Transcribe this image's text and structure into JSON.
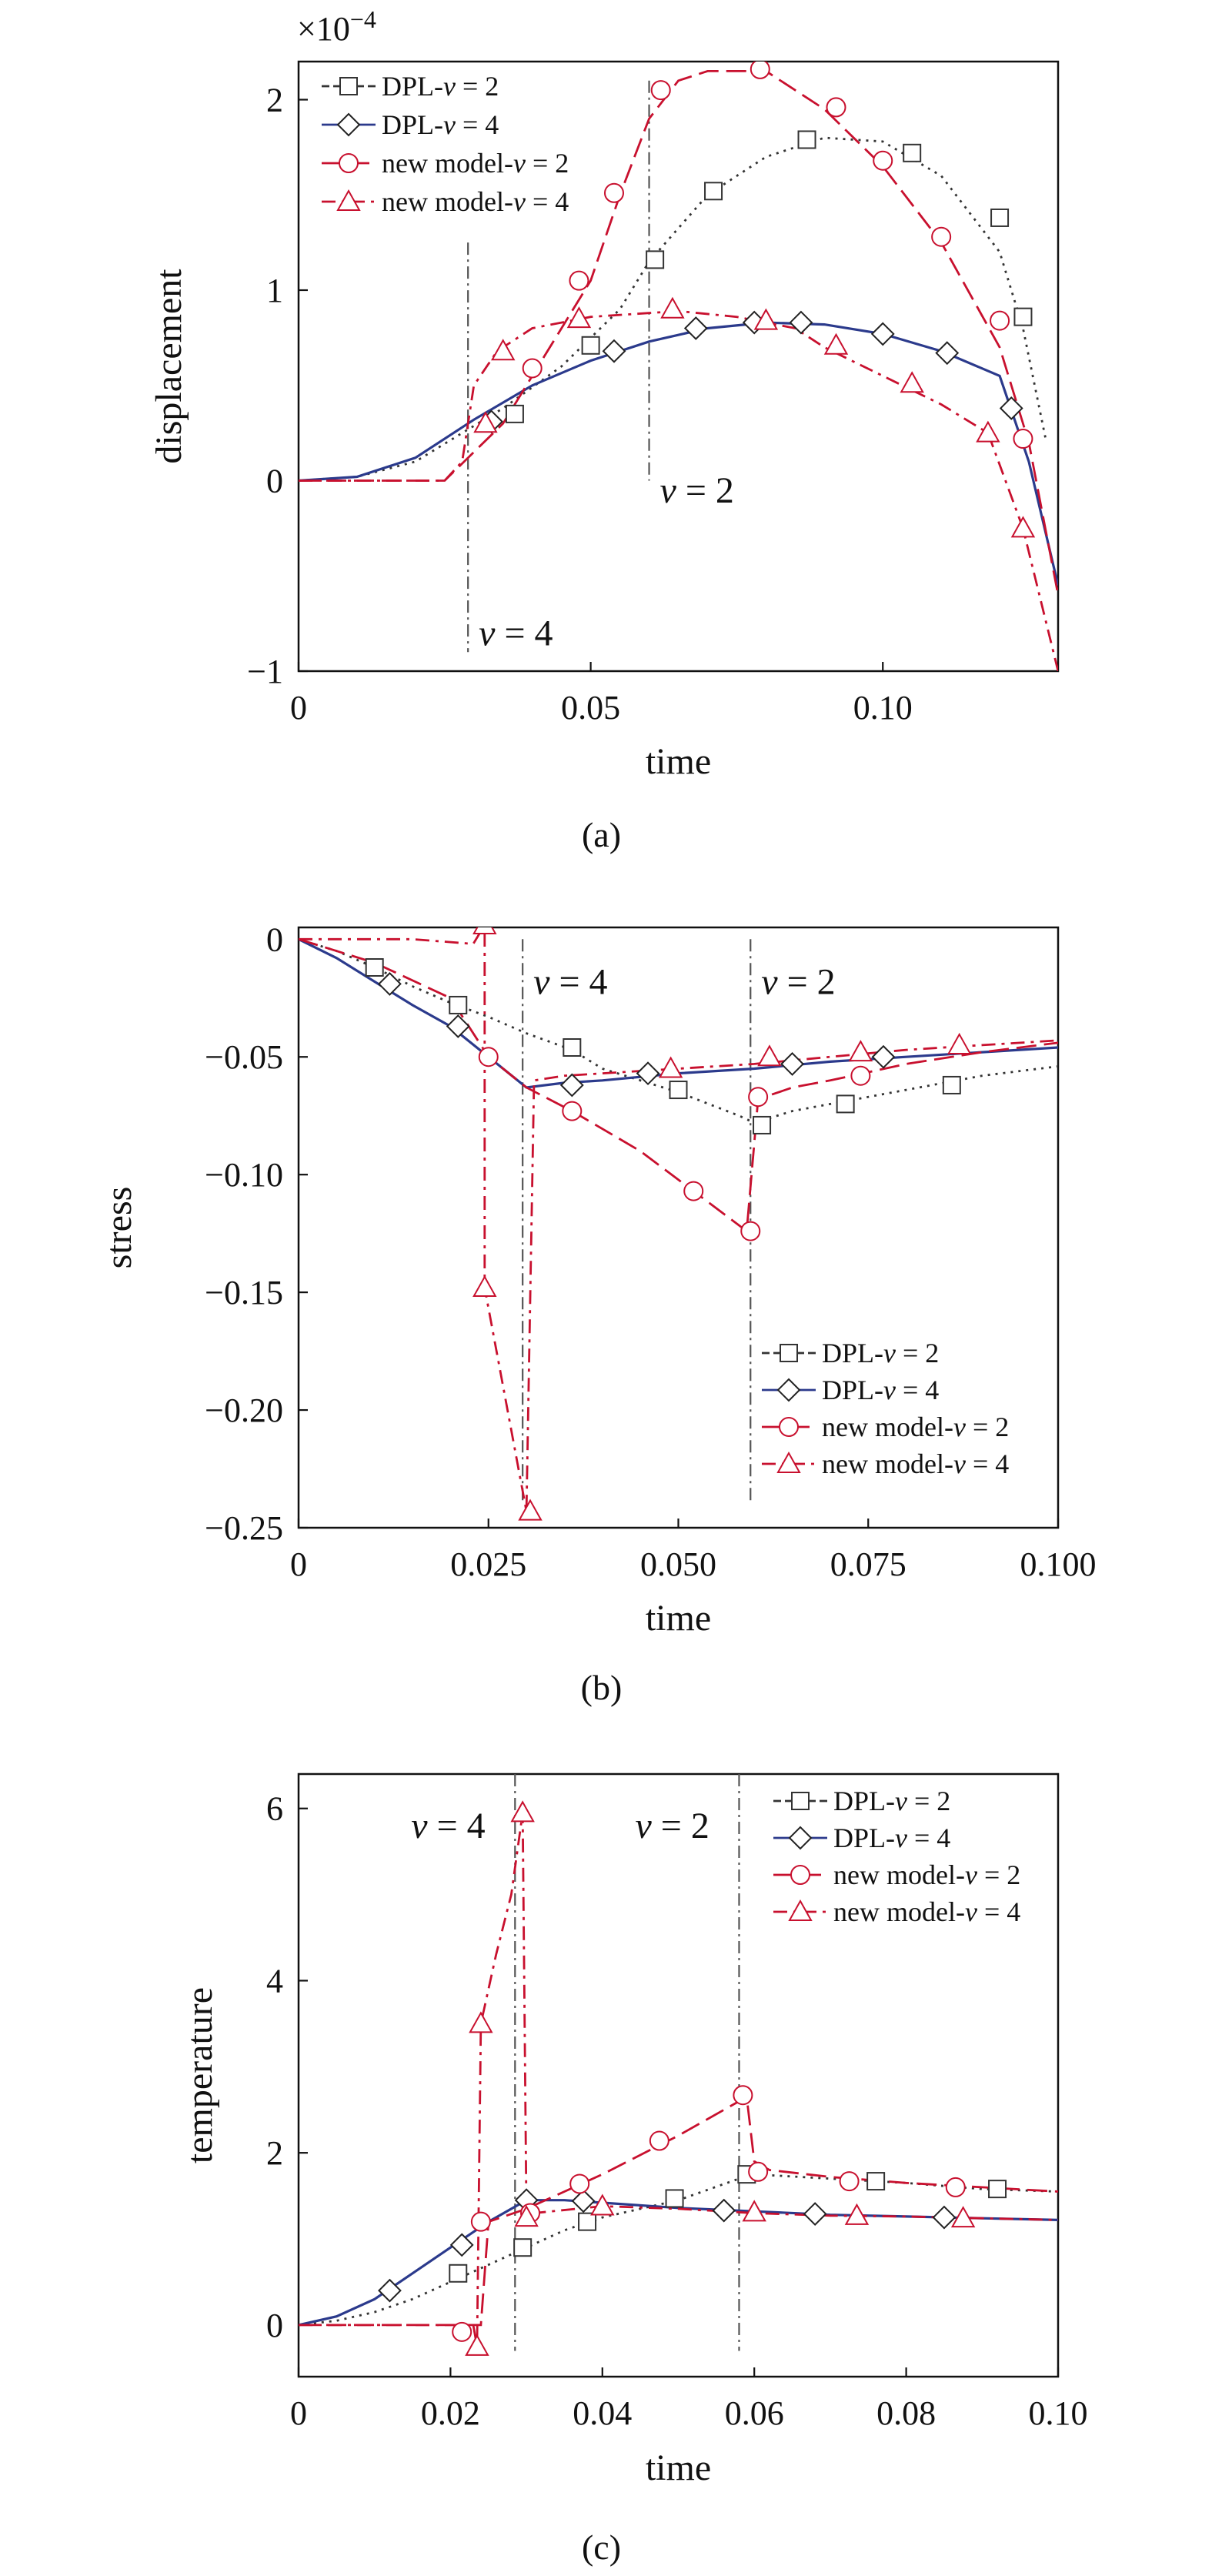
{
  "figure": {
    "legend_labels": [
      "DPL-v = 2",
      "DPL-v = 4",
      "new model-v = 2",
      "new model-v = 4"
    ]
  },
  "colors": {
    "dpl_v2": "#333333",
    "dpl_v4": "#2b3a8c",
    "new_v2": "#c8102e",
    "new_v4": "#c8102e",
    "reference_line": "#555555"
  },
  "chart_data": [
    {
      "id": "a",
      "type": "line",
      "panel_label": "(a)",
      "xlabel": "time",
      "ylabel": "displacement",
      "multiplier": "×10",
      "multiplier_exp": "−4",
      "xlim": [
        0,
        0.13
      ],
      "ylim": [
        -1,
        2.2
      ],
      "xticks": [
        0,
        0.05,
        0.1
      ],
      "xtick_labels": [
        "0",
        "0.05",
        "0.10"
      ],
      "yticks": [
        -1,
        0,
        1,
        2
      ],
      "ytick_labels": [
        "−1",
        "0",
        "1",
        "2"
      ],
      "legend_position": "top-left",
      "annotations": [
        {
          "text": "v = 4",
          "x": 0.029,
          "y1": 1.25,
          "y2": -0.9,
          "label_y": -0.8
        },
        {
          "text": "v = 2",
          "x": 0.06,
          "y1": 2.1,
          "y2": 0.0,
          "label_y": -0.05
        }
      ],
      "series": [
        {
          "name": "DPL-v = 2",
          "marker": "square",
          "dash": "3,7",
          "color": "#333333",
          "x": [
            0,
            0.01,
            0.02,
            0.028,
            0.035,
            0.045,
            0.055,
            0.06,
            0.07,
            0.08,
            0.09,
            0.1,
            0.11,
            0.12,
            0.124,
            0.128
          ],
          "y": [
            0,
            0.02,
            0.1,
            0.25,
            0.38,
            0.6,
            0.9,
            1.15,
            1.5,
            1.7,
            1.8,
            1.78,
            1.6,
            1.2,
            0.8,
            0.2
          ],
          "mx": [
            0.037,
            0.05,
            0.061,
            0.071,
            0.087,
            0.105,
            0.12,
            0.124
          ],
          "my": [
            0.35,
            0.71,
            1.16,
            1.52,
            1.79,
            1.72,
            1.38,
            0.86
          ]
        },
        {
          "name": "DPL-v = 4",
          "marker": "diamond",
          "dash": "",
          "color": "#2b3a8c",
          "x": [
            0,
            0.01,
            0.02,
            0.03,
            0.04,
            0.05,
            0.06,
            0.07,
            0.08,
            0.09,
            0.1,
            0.11,
            0.12,
            0.125,
            0.13
          ],
          "y": [
            0,
            0.02,
            0.12,
            0.32,
            0.5,
            0.63,
            0.73,
            0.8,
            0.83,
            0.82,
            0.77,
            0.68,
            0.55,
            0.1,
            -0.55
          ],
          "mx": [
            0.033,
            0.054,
            0.068,
            0.078,
            0.086,
            0.1,
            0.111,
            0.122
          ],
          "my": [
            0.31,
            0.68,
            0.8,
            0.83,
            0.83,
            0.77,
            0.67,
            0.38
          ]
        },
        {
          "name": "new model-v = 2",
          "marker": "circle",
          "dash": "26,10",
          "color": "#c8102e",
          "x": [
            0,
            0.01,
            0.02,
            0.025,
            0.03,
            0.035,
            0.04,
            0.045,
            0.05,
            0.055,
            0.06,
            0.065,
            0.07,
            0.08,
            0.09,
            0.1,
            0.11,
            0.12,
            0.125,
            0.13
          ],
          "y": [
            0,
            0,
            0,
            0,
            0.15,
            0.3,
            0.55,
            0.8,
            1.05,
            1.5,
            1.9,
            2.1,
            2.15,
            2.15,
            1.95,
            1.65,
            1.25,
            0.7,
            0.2,
            -0.6
          ],
          "mx": [
            0.04,
            0.048,
            0.054,
            0.062,
            0.079,
            0.092,
            0.1,
            0.11,
            0.12,
            0.124
          ],
          "my": [
            0.59,
            1.05,
            1.51,
            2.05,
            2.16,
            1.96,
            1.68,
            1.28,
            0.84,
            0.22
          ]
        },
        {
          "name": "new model-v = 4",
          "marker": "triangle",
          "dash": "18,8,4,8",
          "color": "#c8102e",
          "x": [
            0,
            0.01,
            0.02,
            0.025,
            0.028,
            0.03,
            0.034,
            0.04,
            0.05,
            0.06,
            0.065,
            0.075,
            0.085,
            0.09,
            0.1,
            0.11,
            0.118,
            0.124,
            0.13
          ],
          "y": [
            0,
            0,
            0,
            0,
            0.1,
            0.5,
            0.68,
            0.8,
            0.86,
            0.88,
            0.89,
            0.86,
            0.8,
            0.7,
            0.55,
            0.4,
            0.25,
            -0.25,
            -1.0
          ],
          "mx": [
            0.032,
            0.035,
            0.048,
            0.064,
            0.08,
            0.092,
            0.105,
            0.118,
            0.124
          ],
          "my": [
            0.3,
            0.68,
            0.85,
            0.9,
            0.84,
            0.71,
            0.51,
            0.25,
            -0.25
          ]
        }
      ]
    },
    {
      "id": "b",
      "type": "line",
      "panel_label": "(b)",
      "xlabel": "time",
      "ylabel": "stress",
      "xlim": [
        0,
        0.1
      ],
      "ylim": [
        -0.25,
        0.005
      ],
      "xticks": [
        0,
        0.025,
        0.05,
        0.075,
        0.1
      ],
      "xtick_labels": [
        "0",
        "0.025",
        "0.050",
        "0.075",
        "0.100"
      ],
      "yticks": [
        0,
        -0.05,
        -0.1,
        -0.15,
        -0.2,
        -0.25
      ],
      "ytick_labels": [
        "0",
        "−0.05",
        "−0.10",
        "−0.15",
        "−0.20",
        "−0.25"
      ],
      "legend_position": "bottom-right",
      "annotations": [
        {
          "text": "v = 4",
          "x": 0.0295,
          "y1": 0.0,
          "y2": -0.24,
          "label_y": -0.018
        },
        {
          "text": "v = 2",
          "x": 0.0595,
          "y1": 0.0,
          "y2": -0.24,
          "label_y": -0.018
        }
      ],
      "series": [
        {
          "name": "DPL-v = 2",
          "marker": "square",
          "dash": "3,7",
          "color": "#333333",
          "x": [
            0,
            0.005,
            0.01,
            0.015,
            0.02,
            0.025,
            0.03,
            0.036,
            0.04,
            0.05,
            0.058,
            0.06,
            0.065,
            0.07,
            0.08,
            0.09,
            0.1
          ],
          "y": [
            0,
            -0.005,
            -0.012,
            -0.02,
            -0.027,
            -0.033,
            -0.04,
            -0.047,
            -0.055,
            -0.065,
            -0.075,
            -0.078,
            -0.073,
            -0.07,
            -0.064,
            -0.058,
            -0.054
          ],
          "mx": [
            0.01,
            0.021,
            0.036,
            0.05,
            0.061,
            0.072,
            0.086
          ],
          "my": [
            -0.012,
            -0.028,
            -0.046,
            -0.064,
            -0.079,
            -0.07,
            -0.062
          ]
        },
        {
          "name": "DPL-v = 4",
          "marker": "diamond",
          "dash": "",
          "color": "#2b3a8c",
          "x": [
            0,
            0.005,
            0.01,
            0.015,
            0.02,
            0.025,
            0.03,
            0.035,
            0.04,
            0.05,
            0.06,
            0.07,
            0.08,
            0.09,
            0.1
          ],
          "y": [
            0,
            -0.008,
            -0.018,
            -0.028,
            -0.037,
            -0.05,
            -0.063,
            -0.061,
            -0.06,
            -0.057,
            -0.055,
            -0.052,
            -0.05,
            -0.048,
            -0.046
          ],
          "mx": [
            0.012,
            0.021,
            0.036,
            0.046,
            0.065,
            0.077
          ],
          "my": [
            -0.019,
            -0.037,
            -0.062,
            -0.057,
            -0.053,
            -0.05
          ]
        },
        {
          "name": "new model-v = 2",
          "marker": "circle",
          "dash": "26,10",
          "color": "#c8102e",
          "x": [
            0,
            0.01,
            0.02,
            0.025,
            0.03,
            0.036,
            0.045,
            0.052,
            0.059,
            0.0605,
            0.065,
            0.07,
            0.08,
            0.09,
            0.1
          ],
          "y": [
            0,
            -0.01,
            -0.025,
            -0.05,
            -0.063,
            -0.073,
            -0.09,
            -0.107,
            -0.124,
            -0.068,
            -0.063,
            -0.06,
            -0.053,
            -0.048,
            -0.044
          ],
          "mx": [
            0.025,
            0.036,
            0.052,
            0.0595,
            0.0605,
            0.074
          ],
          "my": [
            -0.05,
            -0.073,
            -0.107,
            -0.124,
            -0.067,
            -0.058
          ]
        },
        {
          "name": "new model-v = 4",
          "marker": "triangle",
          "dash": "18,8,4,8",
          "color": "#c8102e",
          "x": [
            0,
            0.015,
            0.023,
            0.0245,
            0.0245,
            0.0245,
            0.03,
            0.031,
            0.035,
            0.04,
            0.05,
            0.06,
            0.07,
            0.08,
            0.09,
            0.1
          ],
          "y": [
            0,
            0,
            -0.002,
            0.006,
            -0.1,
            -0.148,
            -0.243,
            -0.06,
            -0.058,
            -0.057,
            -0.055,
            -0.053,
            -0.05,
            -0.047,
            -0.045,
            -0.043
          ],
          "mx": [
            0.0245,
            0.0245,
            0.0305,
            0.049,
            0.062,
            0.074,
            0.087
          ],
          "my": [
            0.006,
            -0.148,
            -0.243,
            -0.055,
            -0.05,
            -0.048,
            -0.045
          ]
        }
      ]
    },
    {
      "id": "c",
      "type": "line",
      "panel_label": "(c)",
      "xlabel": "time",
      "ylabel": "temperature",
      "xlim": [
        0,
        0.1
      ],
      "ylim": [
        -0.6,
        6.4
      ],
      "xticks": [
        0,
        0.02,
        0.04,
        0.06,
        0.08,
        0.1
      ],
      "xtick_labels": [
        "0",
        "0.02",
        "0.04",
        "0.06",
        "0.08",
        "0.10"
      ],
      "yticks": [
        0,
        2,
        4,
        6
      ],
      "ytick_labels": [
        "0",
        "2",
        "4",
        "6"
      ],
      "legend_position": "top-right",
      "annotations": [
        {
          "text": "v = 4",
          "x": 0.0285,
          "y1": 6.4,
          "y2": -0.3,
          "label_y": 5.8
        },
        {
          "text": "v = 2",
          "x": 0.058,
          "y1": 6.4,
          "y2": -0.3,
          "label_y": 5.8
        }
      ],
      "series": [
        {
          "name": "DPL-v = 2",
          "marker": "square",
          "dash": "3,7",
          "color": "#333333",
          "x": [
            0,
            0.005,
            0.01,
            0.015,
            0.02,
            0.025,
            0.03,
            0.035,
            0.04,
            0.05,
            0.058,
            0.06,
            0.07,
            0.08,
            0.09,
            0.1
          ],
          "y": [
            0,
            0.05,
            0.15,
            0.3,
            0.5,
            0.7,
            0.9,
            1.1,
            1.25,
            1.45,
            1.7,
            1.75,
            1.7,
            1.65,
            1.58,
            1.55
          ],
          "mx": [
            0.021,
            0.0295,
            0.038,
            0.0495,
            0.059,
            0.076,
            0.092
          ],
          "my": [
            0.6,
            0.9,
            1.2,
            1.47,
            1.75,
            1.67,
            1.58
          ]
        },
        {
          "name": "DPL-v = 4",
          "marker": "diamond",
          "dash": "",
          "color": "#2b3a8c",
          "x": [
            0,
            0.005,
            0.01,
            0.015,
            0.02,
            0.025,
            0.03,
            0.035,
            0.04,
            0.05,
            0.06,
            0.07,
            0.08,
            0.09,
            0.1
          ],
          "y": [
            0,
            0.1,
            0.3,
            0.6,
            0.9,
            1.2,
            1.45,
            1.45,
            1.42,
            1.36,
            1.32,
            1.28,
            1.26,
            1.24,
            1.22
          ],
          "mx": [
            0.012,
            0.0215,
            0.03,
            0.0375,
            0.056,
            0.068,
            0.085
          ],
          "my": [
            0.4,
            0.93,
            1.45,
            1.44,
            1.33,
            1.29,
            1.25
          ]
        },
        {
          "name": "new model-v = 2",
          "marker": "circle",
          "dash": "26,10",
          "color": "#c8102e",
          "x": [
            0,
            0.01,
            0.02,
            0.024,
            0.025,
            0.03,
            0.035,
            0.04,
            0.05,
            0.058,
            0.059,
            0.06,
            0.062,
            0.07,
            0.08,
            0.09,
            0.1
          ],
          "y": [
            0,
            0,
            0,
            0,
            1.2,
            1.35,
            1.55,
            1.75,
            2.2,
            2.6,
            2.65,
            1.9,
            1.8,
            1.72,
            1.65,
            1.6,
            1.55
          ],
          "mx": [
            0.0215,
            0.024,
            0.0305,
            0.037,
            0.0475,
            0.0585,
            0.0605,
            0.0725,
            0.0865
          ],
          "my": [
            -0.08,
            1.2,
            1.3,
            1.64,
            2.14,
            2.67,
            1.78,
            1.67,
            1.6
          ]
        },
        {
          "name": "new model-v = 4",
          "marker": "triangle",
          "dash": "18,8,4,8",
          "color": "#c8102e",
          "x": [
            0,
            0.01,
            0.02,
            0.023,
            0.0235,
            0.024,
            0.026,
            0.028,
            0.0295,
            0.03,
            0.031,
            0.04,
            0.05,
            0.06,
            0.07,
            0.08,
            0.09,
            0.1
          ],
          "y": [
            0,
            0,
            0,
            0,
            -0.25,
            3.5,
            4.3,
            5.0,
            5.95,
            1.3,
            1.3,
            1.38,
            1.35,
            1.3,
            1.27,
            1.26,
            1.24,
            1.22
          ],
          "mx": [
            0.0235,
            0.024,
            0.0295,
            0.03,
            0.04,
            0.06,
            0.0735,
            0.0875
          ],
          "my": [
            -0.25,
            3.5,
            5.95,
            1.25,
            1.38,
            1.31,
            1.27,
            1.24
          ]
        }
      ]
    }
  ]
}
